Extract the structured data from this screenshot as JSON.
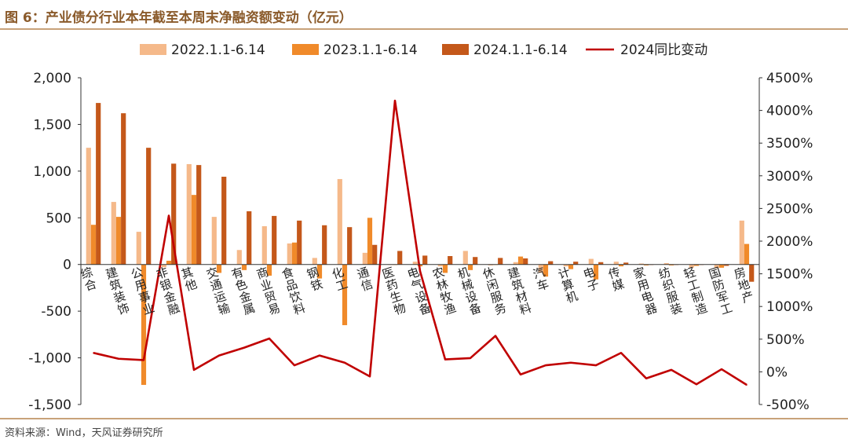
{
  "page": {
    "title": "图 6：产业债分行业本年截至本周末净融资额变动（亿元）",
    "source": "资料来源：Wind，天风证券研究所"
  },
  "colors": {
    "s2022": "#f5b98a",
    "s2023": "#f08a2a",
    "s2024": "#c4581a",
    "line": "#c00000",
    "accent": "#c8a27a"
  },
  "chart_data": {
    "type": "bar",
    "title": "",
    "xlabel": "",
    "ylabel": "",
    "ylim": [
      -1500,
      2000
    ],
    "yticks": [
      "2,000",
      "1,500",
      "1,000",
      "500",
      "0",
      "-500",
      "-1,000",
      "-1,500"
    ],
    "y2lim": [
      -500,
      4500
    ],
    "y2ticks": [
      "4500%",
      "4000%",
      "3500%",
      "3000%",
      "2500%",
      "2000%",
      "1500%",
      "1000%",
      "500%",
      "0%",
      "-500%"
    ],
    "grid": false,
    "legend": "top",
    "categories": [
      "综合",
      "建筑装饰",
      "公用事业",
      "非银金融",
      "其他",
      "交通运输",
      "有色金属",
      "商业贸易",
      "食品饮料",
      "钢铁",
      "化工",
      "通信",
      "医药生物",
      "电气设备",
      "农林牧渔",
      "机械设备",
      "休闲服务",
      "建筑材料",
      "汽车",
      "计算机",
      "电子",
      "传媒",
      "家用电器",
      "纺织服装",
      "轻工制造",
      "国防军工",
      "房地产"
    ],
    "series": [
      {
        "name": "2022.1.1-6.14",
        "type": "bar",
        "axis": "left",
        "values": [
          1250,
          670,
          350,
          -30,
          1075,
          510,
          155,
          410,
          225,
          70,
          915,
          125,
          0,
          30,
          -20,
          145,
          -10,
          25,
          -90,
          -20,
          60,
          30,
          10,
          15,
          -35,
          -40,
          470
        ]
      },
      {
        "name": "2023.1.1-6.14",
        "type": "bar",
        "axis": "left",
        "values": [
          425,
          510,
          -1290,
          40,
          745,
          -90,
          -60,
          -120,
          235,
          -150,
          -650,
          500,
          0,
          -20,
          -90,
          -60,
          -5,
          85,
          -130,
          -50,
          -160,
          -20,
          -10,
          -10,
          -15,
          -35,
          220
        ]
      },
      {
        "name": "2024.1.1-6.14",
        "type": "bar",
        "axis": "left",
        "values": [
          1730,
          1620,
          1250,
          1080,
          1065,
          940,
          570,
          520,
          470,
          420,
          400,
          210,
          145,
          95,
          90,
          80,
          70,
          65,
          35,
          30,
          25,
          20,
          -5,
          -5,
          -5,
          -15,
          -185
        ]
      },
      {
        "name": "2024同比变动",
        "type": "line",
        "axis": "right",
        "values": [
          290,
          200,
          180,
          2390,
          30,
          250,
          370,
          510,
          100,
          250,
          140,
          -70,
          4150,
          1540,
          190,
          210,
          550,
          -40,
          100,
          140,
          100,
          290,
          -100,
          30,
          -190,
          40,
          -200
        ]
      }
    ]
  }
}
